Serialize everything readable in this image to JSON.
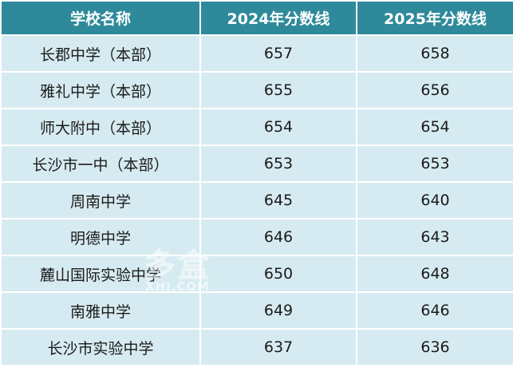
{
  "table": {
    "headers": [
      "学校名称",
      "2024年分数线",
      "2025年分数线"
    ],
    "rows": [
      {
        "school": "长郡中学（本部）",
        "score_2024": "657",
        "score_2025": "658"
      },
      {
        "school": "雅礼中学（本部）",
        "score_2024": "655",
        "score_2025": "656"
      },
      {
        "school": "师大附中（本部）",
        "score_2024": "654",
        "score_2025": "654"
      },
      {
        "school": "长沙市一中（本部）",
        "score_2024": "653",
        "score_2025": "653"
      },
      {
        "school": "周南中学",
        "score_2024": "645",
        "score_2025": "640"
      },
      {
        "school": "明德中学",
        "score_2024": "646",
        "score_2025": "643"
      },
      {
        "school": "麓山国际实验中学",
        "score_2024": "650",
        "score_2025": "648"
      },
      {
        "school": "南雅中学",
        "score_2024": "649",
        "score_2025": "646"
      },
      {
        "school": "长沙市实验中学",
        "score_2024": "637",
        "score_2025": "636"
      }
    ]
  },
  "watermark": {
    "main": "多盒",
    "sub": "XHJ.COM"
  },
  "colors": {
    "header_bg": "#2e8a9a",
    "cell_bg": "#d6ebf1",
    "border": "#ffffff"
  }
}
